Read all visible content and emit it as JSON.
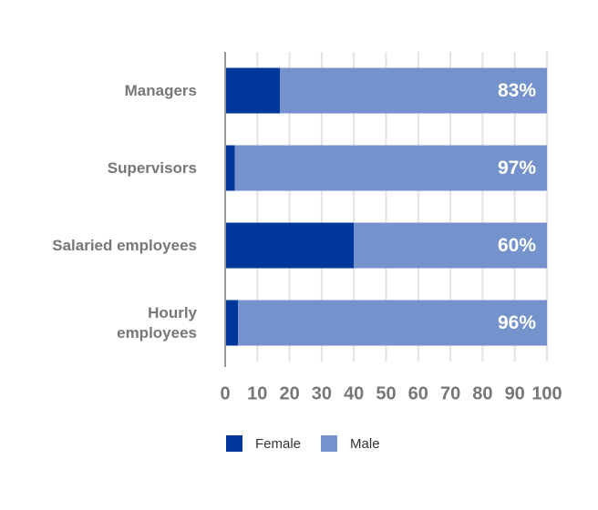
{
  "chart_data": {
    "type": "stacked_barh",
    "categories": [
      "Managers",
      "Supervisors",
      "Salaried employees",
      "Hourly\nemployees"
    ],
    "series": [
      {
        "name": "Female",
        "color": "#00379b",
        "values": [
          17,
          3,
          40,
          4
        ]
      },
      {
        "name": "Male",
        "color": "#7492cb",
        "values": [
          83,
          97,
          60,
          96
        ],
        "value_labels": [
          "83%",
          "97%",
          "60%",
          "96%"
        ]
      }
    ],
    "xlim": [
      0,
      100
    ],
    "xticks": [
      0,
      10,
      20,
      30,
      40,
      50,
      60,
      70,
      80,
      90,
      100
    ],
    "grid": true,
    "legend": "bottom"
  }
}
